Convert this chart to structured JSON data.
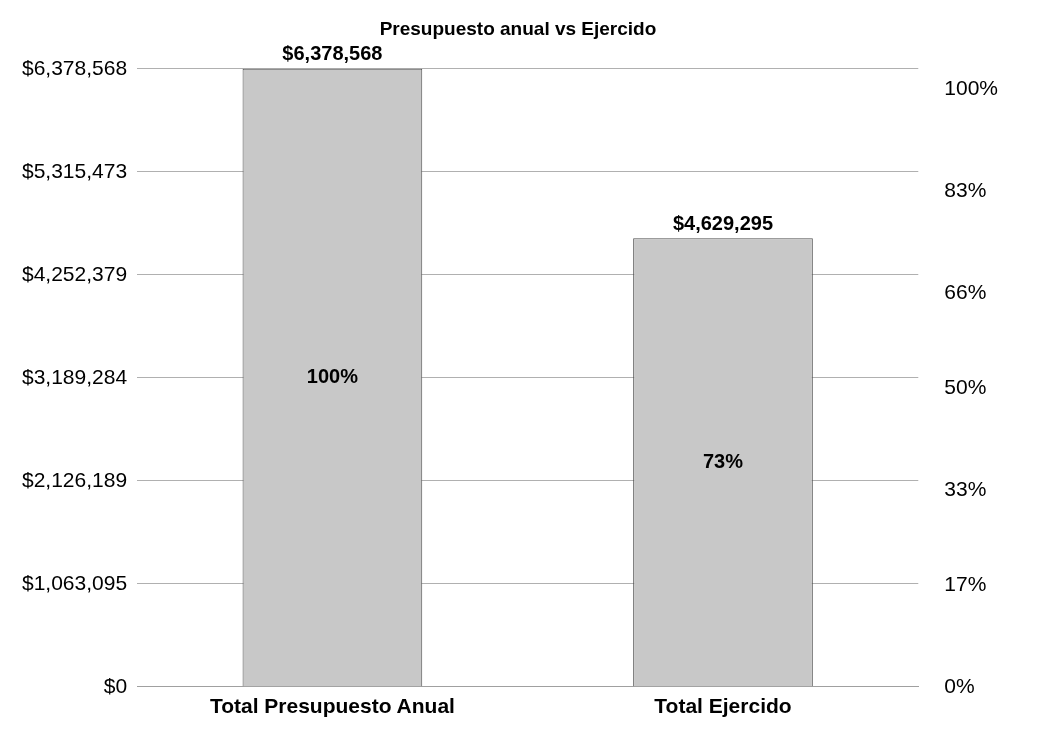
{
  "chart_data": {
    "type": "bar",
    "title": "Presupuesto anual vs Ejercido",
    "categories": [
      "Total Presupuesto Anual",
      "Total Ejercido"
    ],
    "series": [
      {
        "color": "#c8c8c8",
        "values": [
          6378568,
          4629295
        ],
        "value_labels": [
          "$6,378,568",
          "$4,629,295"
        ]
      }
    ],
    "ylim": [
      0,
      6378568
    ],
    "yticks": [
      {
        "value": 0,
        "label": "$0"
      },
      {
        "value": 1063095,
        "label": "$1,063,095"
      },
      {
        "value": 2126189,
        "label": "$2,126,189"
      },
      {
        "value": 3189284,
        "label": "$3,189,284"
      },
      {
        "value": 4252379,
        "label": "$4,252,379"
      },
      {
        "value": 5315473,
        "label": "$5,315,473"
      },
      {
        "value": 6378568,
        "label": "$6,378,568"
      }
    ],
    "y2lim": [
      0,
      103.5
    ],
    "y2ticks": [
      {
        "value": 0,
        "label": "0%"
      },
      {
        "value": 17,
        "label": "17%"
      },
      {
        "value": 33,
        "label": "33%"
      },
      {
        "value": 50,
        "label": "50%"
      },
      {
        "value": 66,
        "label": "66%"
      },
      {
        "value": 83,
        "label": "83%"
      },
      {
        "value": 100,
        "label": "100%"
      }
    ],
    "annotations": [
      "100%",
      "73%"
    ],
    "grid": "y",
    "legend": false
  }
}
